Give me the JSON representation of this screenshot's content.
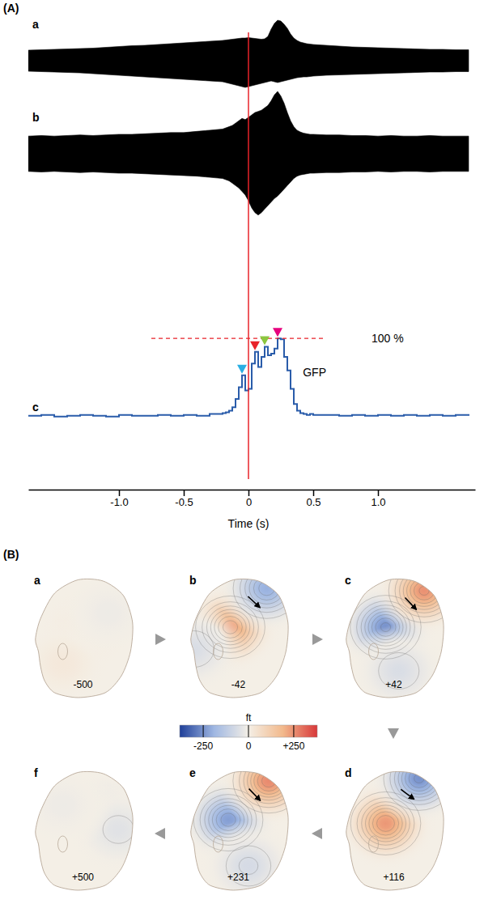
{
  "chart_data": [
    {
      "type": "line",
      "title": "(A)",
      "x_label": "Time (s)",
      "tick_labels": "x",
      "x": [
        -1.7,
        -1.6,
        -1.5,
        -1.4,
        -1.3,
        -1.2,
        -1.1,
        -1,
        -0.9,
        -0.8,
        -0.7,
        -0.6,
        -0.5,
        -0.4,
        -0.3,
        -0.2,
        -0.175,
        -0.15,
        -0.125,
        -0.1,
        -0.075,
        -0.05,
        -0.025,
        0,
        0.025,
        0.05,
        0.075,
        0.1,
        0.125,
        0.15,
        0.175,
        0.2,
        0.225,
        0.25,
        0.275,
        0.3,
        0.325,
        0.35,
        0.375,
        0.4,
        0.425,
        0.45,
        0.475,
        0.5,
        0.6,
        0.7,
        0.8,
        0.9,
        1,
        1.1,
        1.2,
        1.3,
        1.4,
        1.5,
        1.6,
        1.7
      ],
      "xlim": [
        -1.7,
        1.75
      ],
      "xticks": [
        {
          "value": -1,
          "label": "-1.0"
        },
        -0.5,
        0,
        0.5,
        {
          "value": 1,
          "label": "1.0"
        }
      ],
      "event_time": 0,
      "series": [
        {
          "name": "a",
          "type": "area",
          "color": "#000000",
          "ylim": [
            -110,
            110
          ],
          "values": [
            26,
            27,
            28,
            29,
            30,
            31,
            33,
            35,
            37,
            38,
            40,
            42,
            44,
            46,
            48,
            50,
            51,
            52,
            53,
            54,
            55,
            56,
            56,
            57,
            56,
            55,
            54,
            53,
            54,
            60,
            78,
            92,
            100,
            98,
            90,
            80,
            66,
            56,
            50,
            46,
            44,
            42,
            41,
            40,
            38,
            36,
            34,
            33,
            32,
            31,
            30,
            29,
            28,
            28,
            27,
            27
          ],
          "lower": [
            -26,
            -27,
            -28,
            -29,
            -30,
            -32,
            -34,
            -36,
            -38,
            -40,
            -42,
            -44,
            -46,
            -48,
            -50,
            -52,
            -54,
            -56,
            -58,
            -60,
            -62,
            -64,
            -66,
            -64,
            -62,
            -60,
            -58,
            -56,
            -54,
            -52,
            -50,
            -52,
            -54,
            -52,
            -50,
            -48,
            -46,
            -44,
            -42,
            -41,
            -40,
            -40,
            -39,
            -38,
            -36,
            -35,
            -34,
            -33,
            -32,
            -31,
            -30,
            -29,
            -28,
            -28,
            -27,
            -27
          ]
        },
        {
          "name": "b",
          "type": "area",
          "color": "#000000",
          "ylim": [
            -110,
            110
          ],
          "values": [
            30,
            31,
            30,
            31,
            32,
            31,
            32,
            33,
            33,
            34,
            35,
            36,
            36,
            38,
            40,
            42,
            44,
            46,
            48,
            52,
            56,
            60,
            58,
            62,
            66,
            70,
            72,
            74,
            78,
            82,
            90,
            100,
            106,
            98,
            86,
            70,
            56,
            46,
            40,
            37,
            35,
            34,
            33,
            33,
            32,
            32,
            31,
            31,
            30,
            31,
            30,
            30,
            31,
            30,
            30,
            30
          ],
          "lower": [
            -30,
            -31,
            -30,
            -31,
            -32,
            -31,
            -32,
            -33,
            -33,
            -34,
            -35,
            -36,
            -37,
            -38,
            -40,
            -42,
            -44,
            -46,
            -50,
            -54,
            -58,
            -64,
            -70,
            -80,
            -92,
            -100,
            -104,
            -100,
            -94,
            -88,
            -82,
            -76,
            -72,
            -66,
            -60,
            -54,
            -48,
            -42,
            -38,
            -36,
            -35,
            -34,
            -33,
            -33,
            -32,
            -32,
            -31,
            -31,
            -30,
            -31,
            -30,
            -30,
            -31,
            -30,
            -30,
            -30
          ]
        },
        {
          "name": "c",
          "label": "GFP",
          "type": "line",
          "color": "#2a5caa",
          "ylim": [
            0,
            105
          ],
          "values": [
            8,
            9,
            7,
            8,
            9,
            8,
            7,
            9,
            8,
            8,
            9,
            8,
            9,
            8,
            10,
            11,
            12,
            14,
            18,
            28,
            42,
            56,
            38,
            40,
            70,
            84,
            66,
            78,
            90,
            80,
            82,
            88,
            100,
            99,
            78,
            62,
            40,
            22,
            14,
            11,
            10,
            9,
            10,
            9,
            9,
            8,
            9,
            8,
            9,
            8,
            9,
            8,
            9,
            8,
            9,
            8
          ],
          "reference": {
            "value": 100,
            "label": "100 %"
          },
          "peaks": [
            {
              "x": -0.05,
              "value": 56,
              "color": "#29aee3"
            },
            {
              "x": 0.05,
              "value": 84,
              "color": "#e8232a"
            },
            {
              "x": 0.125,
              "value": 90,
              "color": "#8cc63f"
            },
            {
              "x": 0.225,
              "value": 100,
              "color": "#e6007e"
            }
          ]
        }
      ]
    },
    {
      "type": "topography",
      "title": "(B)",
      "maps": [
        {
          "name": "a",
          "time": -500,
          "poles": [
            {
              "x": 0.5,
              "y": 0.45,
              "value": 20
            },
            {
              "x": 0.3,
              "y": 0.72,
              "value": 25
            },
            {
              "x": 0.75,
              "y": 0.3,
              "value": -15
            }
          ]
        },
        {
          "name": "b",
          "time": -42,
          "poles": [
            {
              "x": 0.42,
              "y": 0.42,
              "value": 230
            },
            {
              "x": 0.78,
              "y": 0.1,
              "value": -200
            },
            {
              "x": 0.06,
              "y": 0.6,
              "value": -60
            }
          ]
        },
        {
          "name": "c",
          "time": {
            "value": 42,
            "label": "+42"
          },
          "poles": [
            {
              "x": 0.42,
              "y": 0.42,
              "value": -250
            },
            {
              "x": 0.8,
              "y": 0.12,
              "value": 250
            },
            {
              "x": 0.55,
              "y": 0.78,
              "value": -60
            }
          ]
        },
        {
          "name": "d",
          "time": {
            "value": 116,
            "label": "+116"
          },
          "poles": [
            {
              "x": 0.42,
              "y": 0.45,
              "value": 240
            },
            {
              "x": 0.75,
              "y": 0.08,
              "value": -250
            }
          ]
        },
        {
          "name": "e",
          "time": {
            "value": 231,
            "label": "+231"
          },
          "poles": [
            {
              "x": 0.4,
              "y": 0.42,
              "value": -230
            },
            {
              "x": 0.8,
              "y": 0.1,
              "value": 260
            },
            {
              "x": 0.6,
              "y": 0.8,
              "value": -70
            }
          ]
        },
        {
          "name": "f",
          "time": {
            "value": 500,
            "label": "+500"
          },
          "poles": [
            {
              "x": 0.7,
              "y": 0.35,
              "value": -30
            },
            {
              "x": 0.85,
              "y": 0.5,
              "value": -45
            },
            {
              "x": 0.3,
              "y": 0.3,
              "value": -15
            }
          ]
        }
      ],
      "colorbar": {
        "title": "ft",
        "range": [
          -380,
          380
        ],
        "ticks": [
          -250,
          0,
          {
            "value": 250,
            "label": "+250"
          }
        ],
        "colors": [
          "#1f3f99",
          "#9fb7e2",
          "#f4efe6",
          "#f2b98c",
          "#d8383a"
        ]
      }
    }
  ]
}
